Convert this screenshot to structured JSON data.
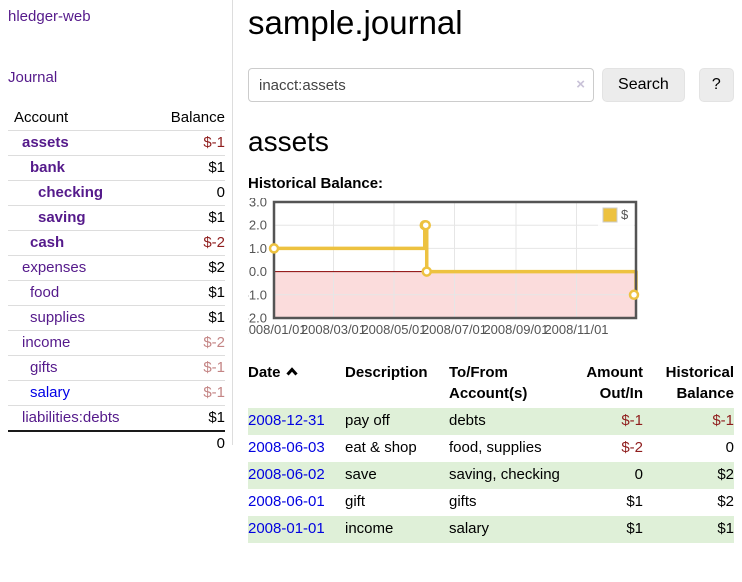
{
  "sidebar": {
    "app_title": "hledger-web",
    "journal_label": "Journal",
    "accounts_table": {
      "headers": {
        "account": "Account",
        "balance": "Balance"
      },
      "rows": [
        {
          "name": "assets",
          "balance": "$-1",
          "depth": 1,
          "bold": true
        },
        {
          "name": "bank",
          "balance": "$1",
          "depth": 2,
          "bold": true
        },
        {
          "name": "checking",
          "balance": "0",
          "depth": 3,
          "bold": true
        },
        {
          "name": "saving",
          "balance": "$1",
          "depth": 3,
          "bold": true
        },
        {
          "name": "cash",
          "balance": "$-2",
          "depth": 2,
          "bold": true
        },
        {
          "name": "expenses",
          "balance": "$2",
          "depth": 1,
          "bold": false
        },
        {
          "name": "food",
          "balance": "$1",
          "depth": 2,
          "bold": false
        },
        {
          "name": "supplies",
          "balance": "$1",
          "depth": 2,
          "bold": false
        },
        {
          "name": "income",
          "balance": "$-2",
          "depth": 1,
          "bold": false
        },
        {
          "name": "gifts",
          "balance": "$-1",
          "depth": 2,
          "bold": false
        },
        {
          "name": "salary",
          "balance": "$-1",
          "depth": 2,
          "bold": false,
          "link_color": "blue"
        },
        {
          "name": "liabilities:debts",
          "balance": "$1",
          "depth": 1,
          "bold": false
        }
      ],
      "total": "0"
    }
  },
  "header": {
    "title": "sample.journal"
  },
  "search": {
    "value": "inacct:assets",
    "clear_icon": "×",
    "button_label": "Search",
    "help_label": "?"
  },
  "account_page": {
    "title": "assets",
    "chart_label": "Historical Balance:"
  },
  "chart_data": {
    "type": "line",
    "step": true,
    "title": "Historical Balance:",
    "xlim": [
      "2008-01-01",
      "2008-12-31"
    ],
    "ylim": [
      -2,
      3
    ],
    "yticks": [
      3,
      2,
      1,
      0,
      -1,
      -2
    ],
    "xticks": [
      {
        "label": "2008/01/01",
        "date": "2008-01-01"
      },
      {
        "label": "2008/03/01",
        "date": "2008-03-01"
      },
      {
        "label": "2008/05/01",
        "date": "2008-05-01"
      },
      {
        "label": "2008/07/01",
        "date": "2008-07-01"
      },
      {
        "label": "2008/09/01",
        "date": "2008-09-01"
      },
      {
        "label": "2008/11/01",
        "date": "2008-11-01"
      }
    ],
    "series": [
      {
        "name": "$",
        "color": "#edc240",
        "x": [
          "2008-01-01",
          "2008-06-01",
          "2008-06-02",
          "2008-06-03",
          "2008-12-31"
        ],
        "values": [
          1,
          2,
          2,
          0,
          -1
        ]
      }
    ],
    "legend_position": "top-right",
    "grid": true,
    "gridline_color": "#e6e6e6",
    "border_color": "#545454",
    "negative_region_color": "#fbdcdc",
    "zero_line_color": "#8b0000"
  },
  "register_table": {
    "headers": {
      "date": "Date",
      "description": "Description",
      "tofrom": "To/From Account(s)",
      "amount": "Amount Out/In",
      "balance": "Historical Balance"
    },
    "rows": [
      {
        "date": "2008-12-31",
        "description": "pay off",
        "accounts": "debts",
        "amount": "$-1",
        "balance": "$-1"
      },
      {
        "date": "2008-06-03",
        "description": "eat & shop",
        "accounts": "food, supplies",
        "amount": "$-2",
        "balance": "0"
      },
      {
        "date": "2008-06-02",
        "description": "save",
        "accounts": "saving, checking",
        "amount": "0",
        "balance": "$2"
      },
      {
        "date": "2008-06-01",
        "description": "gift",
        "accounts": "gifts",
        "amount": "$1",
        "balance": "$2"
      },
      {
        "date": "2008-01-01",
        "description": "income",
        "accounts": "salary",
        "amount": "$1",
        "balance": "$1"
      }
    ]
  }
}
